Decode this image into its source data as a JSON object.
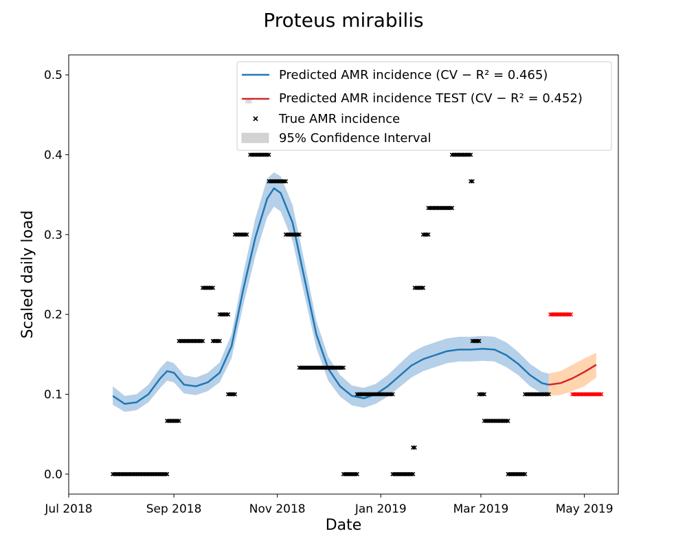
{
  "chart_data": {
    "type": "line",
    "title": "Proteus mirabilis",
    "xlabel": "Date",
    "ylabel": "Scaled daily load",
    "xlim": [
      "2018-07-01",
      "2019-05-21"
    ],
    "ylim": [
      -0.025,
      0.525
    ],
    "x_ticks": [
      {
        "date": "2018-07-01",
        "label": "Jul 2018"
      },
      {
        "date": "2018-09-01",
        "label": "Sep 2018"
      },
      {
        "date": "2018-11-01",
        "label": "Nov 2018"
      },
      {
        "date": "2019-01-01",
        "label": "Jan 2019"
      },
      {
        "date": "2019-03-01",
        "label": "Mar 2019"
      },
      {
        "date": "2019-05-01",
        "label": "May 2019"
      }
    ],
    "y_ticks": [
      {
        "value": 0.0,
        "label": "0.0"
      },
      {
        "value": 0.1,
        "label": "0.1"
      },
      {
        "value": 0.2,
        "label": "0.2"
      },
      {
        "value": 0.3,
        "label": "0.3"
      },
      {
        "value": 0.4,
        "label": "0.4"
      },
      {
        "value": 0.5,
        "label": "0.5"
      }
    ],
    "grid": false,
    "legend_position": "top-right",
    "legend": [
      {
        "label": "Predicted AMR incidence (CV − R² = 0.465)",
        "kind": "line",
        "color": "#1f77b4"
      },
      {
        "label": "Predicted AMR incidence TEST (CV − R² = 0.452)",
        "kind": "line",
        "color": "#d62728"
      },
      {
        "label": "True AMR incidence",
        "kind": "marker",
        "color": "#000000"
      },
      {
        "label": "95% Confidence Interval",
        "kind": "patch",
        "color": "#d3d3d3"
      }
    ],
    "series": [
      {
        "name": "Predicted AMR incidence",
        "color": "#1f77b4",
        "band_color": "#b5d0e8",
        "points": [
          [
            "2018-07-27",
            0.098,
            0.087,
            0.11
          ],
          [
            "2018-08-03",
            0.088,
            0.078,
            0.098
          ],
          [
            "2018-08-10",
            0.09,
            0.08,
            0.1
          ],
          [
            "2018-08-17",
            0.1,
            0.09,
            0.112
          ],
          [
            "2018-08-24",
            0.12,
            0.108,
            0.133
          ],
          [
            "2018-08-28",
            0.129,
            0.117,
            0.142
          ],
          [
            "2018-09-01",
            0.127,
            0.115,
            0.139
          ],
          [
            "2018-09-07",
            0.112,
            0.101,
            0.124
          ],
          [
            "2018-09-14",
            0.11,
            0.099,
            0.121
          ],
          [
            "2018-09-21",
            0.115,
            0.104,
            0.127
          ],
          [
            "2018-09-28",
            0.127,
            0.115,
            0.14
          ],
          [
            "2018-10-05",
            0.16,
            0.145,
            0.175
          ],
          [
            "2018-10-12",
            0.232,
            0.212,
            0.252
          ],
          [
            "2018-10-19",
            0.296,
            0.273,
            0.32
          ],
          [
            "2018-10-26",
            0.345,
            0.322,
            0.37
          ],
          [
            "2018-10-30",
            0.358,
            0.335,
            0.378
          ],
          [
            "2018-11-03",
            0.352,
            0.329,
            0.373
          ],
          [
            "2018-11-10",
            0.315,
            0.292,
            0.337
          ],
          [
            "2018-11-17",
            0.245,
            0.224,
            0.266
          ],
          [
            "2018-11-24",
            0.175,
            0.158,
            0.192
          ],
          [
            "2018-12-01",
            0.132,
            0.117,
            0.147
          ],
          [
            "2018-12-08",
            0.11,
            0.097,
            0.124
          ],
          [
            "2018-12-15",
            0.098,
            0.086,
            0.111
          ],
          [
            "2018-12-22",
            0.095,
            0.083,
            0.108
          ],
          [
            "2018-12-29",
            0.1,
            0.088,
            0.113
          ],
          [
            "2019-01-05",
            0.11,
            0.097,
            0.124
          ],
          [
            "2019-01-12",
            0.123,
            0.109,
            0.138
          ],
          [
            "2019-01-19",
            0.136,
            0.121,
            0.152
          ],
          [
            "2019-01-26",
            0.144,
            0.129,
            0.16
          ],
          [
            "2019-02-02",
            0.149,
            0.134,
            0.165
          ],
          [
            "2019-02-09",
            0.154,
            0.139,
            0.17
          ],
          [
            "2019-02-16",
            0.156,
            0.141,
            0.172
          ],
          [
            "2019-02-23",
            0.156,
            0.141,
            0.172
          ],
          [
            "2019-03-02",
            0.157,
            0.142,
            0.173
          ],
          [
            "2019-03-09",
            0.156,
            0.141,
            0.172
          ],
          [
            "2019-03-16",
            0.149,
            0.134,
            0.165
          ],
          [
            "2019-03-23",
            0.138,
            0.124,
            0.153
          ],
          [
            "2019-03-30",
            0.124,
            0.11,
            0.138
          ],
          [
            "2019-04-06",
            0.114,
            0.101,
            0.128
          ],
          [
            "2019-04-10",
            0.112,
            0.099,
            0.126
          ]
        ]
      },
      {
        "name": "Predicted AMR incidence TEST",
        "color": "#d62728",
        "band_color": "#ffd5b0",
        "points": [
          [
            "2019-04-10",
            0.112,
            0.098,
            0.126
          ],
          [
            "2019-04-17",
            0.114,
            0.099,
            0.129
          ],
          [
            "2019-04-24",
            0.12,
            0.104,
            0.137
          ],
          [
            "2019-05-01",
            0.128,
            0.11,
            0.145
          ],
          [
            "2019-05-08",
            0.137,
            0.121,
            0.152
          ]
        ]
      }
    ],
    "true_segments": [
      {
        "start": "2018-07-27",
        "end": "2018-08-28",
        "y": 0.0,
        "color": "#000000"
      },
      {
        "start": "2018-08-28",
        "end": "2018-09-04",
        "y": 0.0667,
        "color": "#000000"
      },
      {
        "start": "2018-09-04",
        "end": "2018-09-18",
        "y": 0.1667,
        "color": "#000000"
      },
      {
        "start": "2018-09-18",
        "end": "2018-09-24",
        "y": 0.2333,
        "color": "#000000"
      },
      {
        "start": "2018-09-24",
        "end": "2018-09-28",
        "y": 0.1667,
        "color": "#000000"
      },
      {
        "start": "2018-09-28",
        "end": "2018-10-03",
        "y": 0.2,
        "color": "#000000"
      },
      {
        "start": "2018-10-03",
        "end": "2018-10-07",
        "y": 0.1,
        "color": "#000000"
      },
      {
        "start": "2018-10-07",
        "end": "2018-10-14",
        "y": 0.3,
        "color": "#000000"
      },
      {
        "start": "2018-10-14",
        "end": "2018-10-16",
        "y": 0.4667,
        "color": "#000000"
      },
      {
        "start": "2018-10-16",
        "end": "2018-10-27",
        "y": 0.4,
        "color": "#000000"
      },
      {
        "start": "2018-10-27",
        "end": "2018-11-06",
        "y": 0.3667,
        "color": "#000000"
      },
      {
        "start": "2018-11-06",
        "end": "2018-11-14",
        "y": 0.3,
        "color": "#000000"
      },
      {
        "start": "2018-11-14",
        "end": "2018-12-10",
        "y": 0.1333,
        "color": "#000000"
      },
      {
        "start": "2018-12-10",
        "end": "2018-12-18",
        "y": 0.0,
        "color": "#000000"
      },
      {
        "start": "2018-12-18",
        "end": "2019-01-08",
        "y": 0.1,
        "color": "#000000"
      },
      {
        "start": "2019-01-08",
        "end": "2019-01-20",
        "y": 0.0,
        "color": "#000000"
      },
      {
        "start": "2019-01-20",
        "end": "2019-01-21",
        "y": 0.0333,
        "color": "#000000"
      },
      {
        "start": "2019-01-21",
        "end": "2019-01-26",
        "y": 0.2333,
        "color": "#000000"
      },
      {
        "start": "2019-01-26",
        "end": "2019-01-29",
        "y": 0.3,
        "color": "#000000"
      },
      {
        "start": "2019-01-29",
        "end": "2019-02-12",
        "y": 0.3333,
        "color": "#000000"
      },
      {
        "start": "2019-02-12",
        "end": "2019-02-23",
        "y": 0.4,
        "color": "#000000"
      },
      {
        "start": "2019-02-23",
        "end": "2019-02-24",
        "y": 0.3667,
        "color": "#000000"
      },
      {
        "start": "2019-02-24",
        "end": "2019-02-28",
        "y": 0.1667,
        "color": "#000000"
      },
      {
        "start": "2019-02-28",
        "end": "2019-03-03",
        "y": 0.1,
        "color": "#000000"
      },
      {
        "start": "2019-03-03",
        "end": "2019-03-17",
        "y": 0.0667,
        "color": "#000000"
      },
      {
        "start": "2019-03-17",
        "end": "2019-03-27",
        "y": 0.0,
        "color": "#000000"
      },
      {
        "start": "2019-03-27",
        "end": "2019-04-10",
        "y": 0.1,
        "color": "#000000"
      },
      {
        "start": "2019-04-11",
        "end": "2019-04-23",
        "y": 0.2,
        "color": "#ff0000"
      },
      {
        "start": "2019-04-24",
        "end": "2019-05-11",
        "y": 0.1,
        "color": "#ff0000"
      }
    ]
  }
}
